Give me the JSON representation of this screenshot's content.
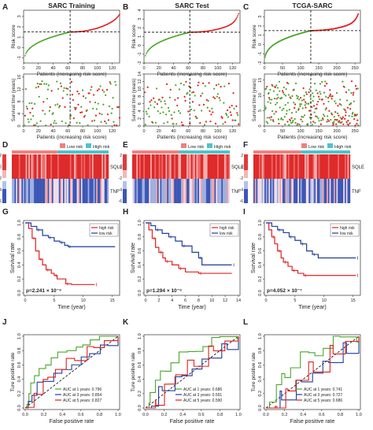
{
  "figure": {
    "row1": {
      "panels": [
        {
          "letter": "A",
          "title": "SARC Training",
          "n": 130,
          "cut": 63,
          "lo": -1.5,
          "hi": 3.2,
          "rows": 2.9,
          "ylabel": "Risk score",
          "xlabel": "Patients (increasing risk score)",
          "yticks": [
            "-1",
            "0",
            "1",
            "2",
            "3"
          ],
          "xticks": [
            "0",
            "20",
            "40",
            "60",
            "80",
            "100",
            "120"
          ],
          "xmax": 130
        },
        {
          "letter": "B",
          "title": "SARC Test",
          "n": 128,
          "cut": 62,
          "lo": -2.0,
          "hi": 3.6,
          "rows": 2.7,
          "ylabel": "Risk score",
          "xlabel": "Patients (increasing risk score)",
          "yticks": [
            "-2",
            "-1",
            "0",
            "1",
            "2",
            "3",
            "4"
          ],
          "xticks": [
            "0",
            "20",
            "40",
            "60",
            "80",
            "100",
            "120"
          ],
          "xmax": 130
        },
        {
          "letter": "C",
          "title": "TCGA-SARC",
          "n": 259,
          "cut": 128,
          "lo": -2.0,
          "hi": 3.3,
          "rows": 2.5,
          "ylabel": "Risk score",
          "xlabel": "Patients (increasing risk score)",
          "yticks": [
            "-2",
            "-1",
            "0",
            "1",
            "2",
            "3"
          ],
          "xticks": [
            "0",
            "50",
            "100",
            "150",
            "200",
            "250"
          ],
          "xmax": 265
        }
      ]
    },
    "row2": {
      "ylabel": "Survival time (years)",
      "xlabel": "Patients (increasing risk score)",
      "panels": [
        {
          "yticks": [
            "0",
            "4",
            "8",
            "12",
            "16"
          ],
          "ymax": 17
        },
        {
          "yticks": [
            "0",
            "2",
            "4",
            "6",
            "8",
            "10",
            "12",
            "14"
          ],
          "ymax": 14
        },
        {
          "yticks": [
            "0",
            "5",
            "10",
            "15"
          ],
          "ymax": 17
        }
      ]
    },
    "row3": {
      "legend_low": "Low risk",
      "legend_high": "High risk",
      "gene1": "SQLE",
      "gene2": "TNF",
      "scale_ticks": [
        "2",
        "0",
        "-2",
        "-4",
        "-6"
      ],
      "panels": [
        {
          "letter": "D",
          "cut": 0.47
        },
        {
          "letter": "E",
          "cut": 0.48
        },
        {
          "letter": "F",
          "cut": 0.49
        }
      ]
    },
    "row4": {
      "ylabel": "Survival rate",
      "xlabel": "Time (year)",
      "legend_high": "high risk",
      "legend_low": "low risk",
      "yticks": [
        "0.0",
        "0.2",
        "0.4",
        "0.6",
        "0.8",
        "1.0"
      ],
      "panels": [
        {
          "letter": "G",
          "pvalue": "p=2.241 × 10⁻⁶",
          "xticks": [
            "0",
            "5",
            "10",
            "15"
          ],
          "xmax": 16
        },
        {
          "letter": "H",
          "pvalue": "p=1.294 × 10⁻⁶",
          "xticks": [
            "0",
            "2",
            "4",
            "6",
            "8",
            "10",
            "12",
            "14"
          ],
          "xmax": 14
        },
        {
          "letter": "I",
          "pvalue": "p=4.052 × 10⁻⁷",
          "xticks": [
            "0",
            "5",
            "10",
            "15"
          ],
          "xmax": 16
        }
      ]
    },
    "row5": {
      "ylabel": "Ture positive rate",
      "xlabel": "False positive rate",
      "ticks": [
        "0.0",
        "0.2",
        "0.4",
        "0.6",
        "0.8",
        "1.0"
      ],
      "panels": [
        {
          "letter": "J",
          "auc": [
            "AUC at 1 years: 0.796",
            "AUC at 3 years: 0.854",
            "AUC at 5 years: 0.827"
          ]
        },
        {
          "letter": "K",
          "auc": [
            "AUC at 1 years: 0.686",
            "AUC at 3 years: 0.591",
            "AUC at 5 years: 0.590"
          ]
        },
        {
          "letter": "L",
          "auc": [
            "AUC at 1 years: 0.741",
            "AUC at 3 years: 0.727",
            "AUC at 5 years: 0.686"
          ]
        }
      ]
    },
    "colors": {
      "red": "#e02020",
      "green": "#4aa52a",
      "blue": "#1f3f9a",
      "low_legend": "#f08080",
      "high_legend": "#4fc3c8"
    }
  }
}
